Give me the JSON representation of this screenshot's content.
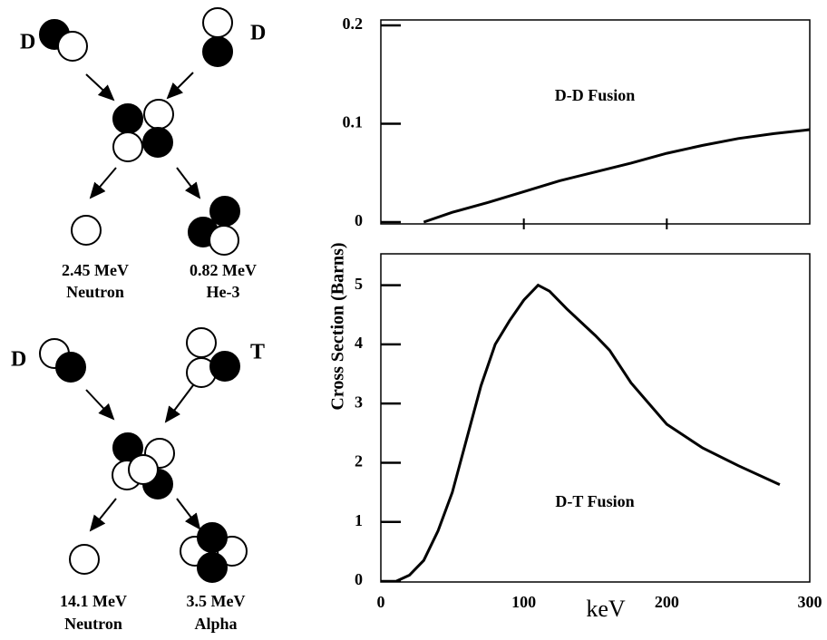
{
  "chart_data": [
    {
      "type": "line",
      "annotation": "D-D Fusion",
      "x": [
        30,
        50,
        75,
        100,
        125,
        150,
        175,
        200,
        225,
        250,
        275,
        300
      ],
      "values": [
        0,
        0.01,
        0.02,
        0.031,
        0.042,
        0.051,
        0.06,
        0.07,
        0.078,
        0.085,
        0.09,
        0.094
      ],
      "color": "#000000",
      "xlim": [
        0,
        300
      ],
      "xticks": [
        100,
        200
      ],
      "xtick_labels": false,
      "ylim": [
        0,
        0.2
      ],
      "yticks": [
        0,
        0.1,
        0.2
      ]
    },
    {
      "type": "line",
      "annotation": "D-T Fusion",
      "xlabel": "keV",
      "ylabel": "Cross Section (Barns)",
      "x": [
        11,
        20,
        30,
        40,
        50,
        60,
        70,
        80,
        90,
        100,
        110,
        118,
        130,
        150,
        160,
        175,
        200,
        225,
        250,
        279
      ],
      "values": [
        0,
        0.1,
        0.35,
        0.85,
        1.5,
        2.4,
        3.3,
        4.0,
        4.4,
        4.75,
        5.0,
        4.9,
        4.6,
        4.15,
        3.9,
        3.35,
        2.65,
        2.25,
        1.95,
        1.63
      ],
      "color": "#000000",
      "xlim": [
        0,
        300
      ],
      "xticks": [
        0,
        100,
        200,
        300
      ],
      "xtick_labels": true,
      "ylim": [
        0,
        5.5
      ],
      "yticks": [
        0,
        1,
        2,
        3,
        4,
        5
      ]
    }
  ],
  "diagram": {
    "dd": {
      "left": "D",
      "right": "D",
      "product1": [
        "2.45 MeV",
        "Neutron"
      ],
      "product2": [
        "0.82 MeV",
        "He-3"
      ]
    },
    "dt": {
      "left": "D",
      "right": "T",
      "product1": [
        "14.1 MeV",
        "Neutron"
      ],
      "product2": [
        "3.5 MeV",
        "Alpha"
      ]
    }
  }
}
